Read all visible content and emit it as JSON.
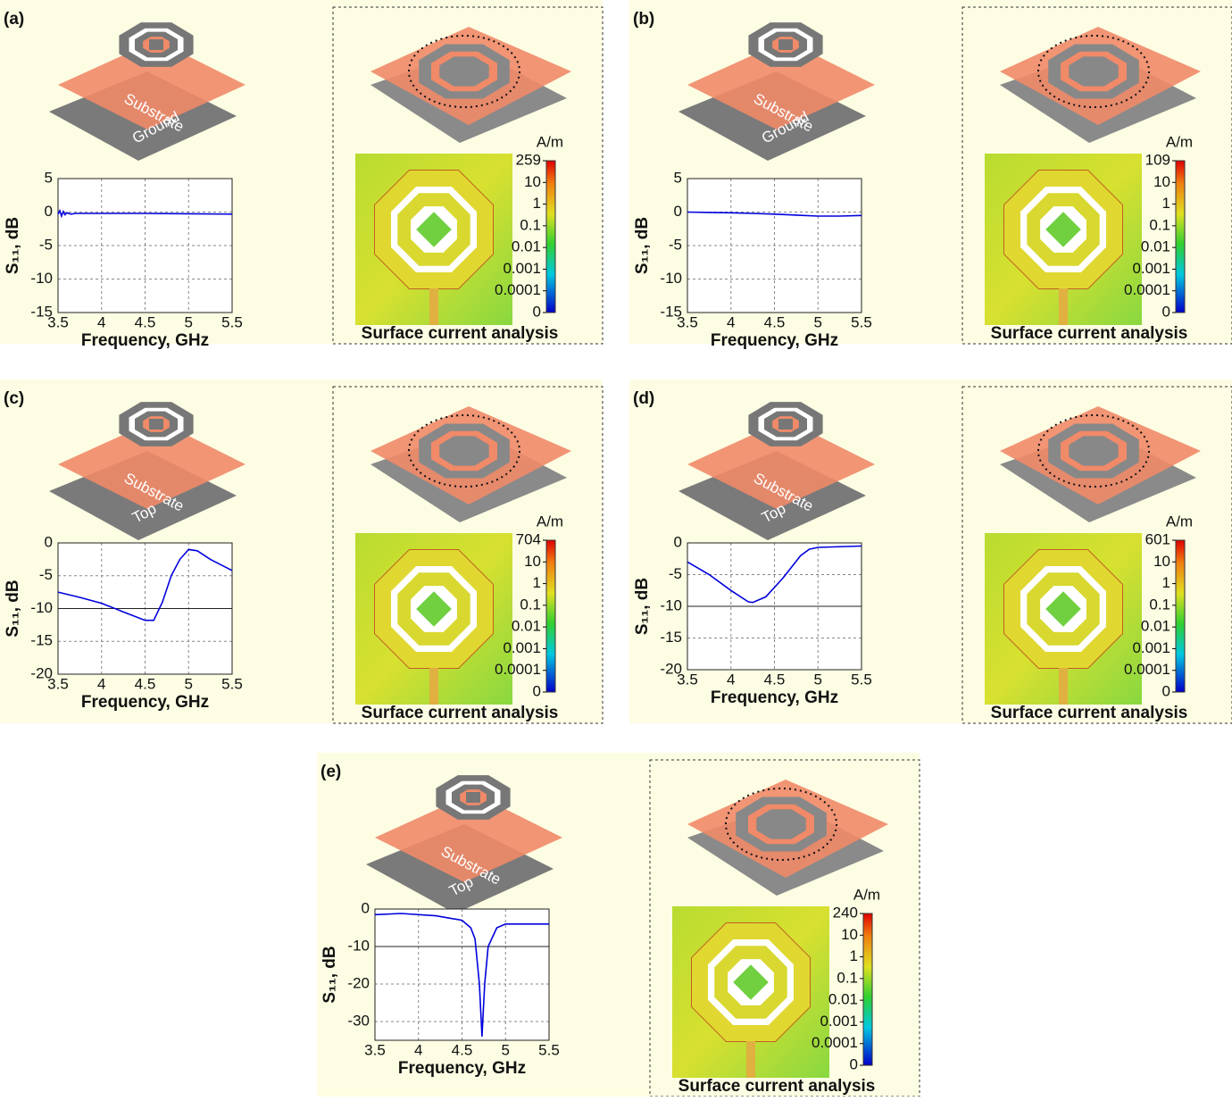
{
  "chart_data": [
    {
      "type": "line",
      "panel": "(a)",
      "layer_labels": [
        "Substrate",
        "Ground"
      ],
      "x": [
        3.5,
        3.52,
        3.54,
        3.56,
        3.58,
        3.6,
        3.65,
        3.7,
        4.0,
        4.5,
        5.0,
        5.5
      ],
      "series": [
        {
          "color": "#0000dd",
          "values": [
            -0.3,
            0.2,
            -0.6,
            0.1,
            -0.4,
            -0.1,
            -0.3,
            -0.2,
            -0.2,
            -0.2,
            -0.25,
            -0.3
          ]
        }
      ],
      "xlabel": "Frequency, GHz",
      "ylabel": "S₁₁, dB",
      "xlim": [
        3.5,
        5.5
      ],
      "ylim": [
        -15,
        5
      ],
      "xticks": [
        3.5,
        4,
        4.5,
        5,
        5.5
      ],
      "yticks": [
        -15,
        -10,
        -5,
        0,
        5
      ],
      "grid": true,
      "caption": "Surface current analysis",
      "colorbar": {
        "unit": "A/m",
        "ticks": [
          259,
          10,
          1,
          0.1,
          0.01,
          0.001,
          0.0001,
          0
        ]
      }
    },
    {
      "type": "line",
      "panel": "(b)",
      "layer_labels": [
        "Substrate",
        "Ground"
      ],
      "x": [
        3.5,
        3.75,
        4.0,
        4.25,
        4.5,
        4.75,
        5.0,
        5.25,
        5.5
      ],
      "series": [
        {
          "color": "#0000dd",
          "values": [
            0,
            -0.05,
            -0.1,
            -0.2,
            -0.3,
            -0.45,
            -0.6,
            -0.6,
            -0.5
          ]
        }
      ],
      "xlabel": "Frequency, GHz",
      "ylabel": "S₁₁, dB",
      "xlim": [
        3.5,
        5.5
      ],
      "ylim": [
        -15,
        5
      ],
      "xticks": [
        3.5,
        4,
        4.5,
        5,
        5.5
      ],
      "yticks": [
        -15,
        -10,
        -5,
        0,
        5
      ],
      "grid": true,
      "caption": "Surface current analysis",
      "colorbar": {
        "unit": "A/m",
        "ticks": [
          109,
          10,
          1,
          0.1,
          0.01,
          0.001,
          0.0001,
          0
        ]
      }
    },
    {
      "type": "line",
      "panel": "(c)",
      "layer_labels": [
        "Substrate",
        "Top"
      ],
      "x": [
        3.5,
        3.75,
        4.0,
        4.25,
        4.5,
        4.6,
        4.7,
        4.8,
        4.9,
        5.0,
        5.1,
        5.25,
        5.5
      ],
      "series": [
        {
          "color": "#0000dd",
          "values": [
            -7.5,
            -8.3,
            -9.2,
            -10.5,
            -11.8,
            -11.8,
            -9,
            -5,
            -2.5,
            -1,
            -1.2,
            -2.5,
            -4.2
          ]
        }
      ],
      "xlabel": "Frequency, GHz",
      "ylabel": "S₁₁, dB",
      "xlim": [
        3.5,
        5.5
      ],
      "ylim": [
        -20,
        0
      ],
      "xticks": [
        3.5,
        4,
        4.5,
        5,
        5.5
      ],
      "yticks": [
        -20,
        -15,
        -10,
        -5,
        0
      ],
      "grid": true,
      "reference_line": -10,
      "caption": "Surface current analysis",
      "colorbar": {
        "unit": "A/m",
        "ticks": [
          704,
          10,
          1,
          0.1,
          0.01,
          0.001,
          0.0001,
          0
        ]
      }
    },
    {
      "type": "line",
      "panel": "(d)",
      "layer_labels": [
        "Substrate",
        "Top"
      ],
      "x": [
        3.5,
        3.75,
        4.0,
        4.2,
        4.25,
        4.4,
        4.6,
        4.8,
        4.9,
        5.0,
        5.5
      ],
      "series": [
        {
          "color": "#0000dd",
          "values": [
            -3,
            -5,
            -7.5,
            -9.3,
            -9.4,
            -8.5,
            -5.5,
            -2,
            -1,
            -0.7,
            -0.5
          ]
        }
      ],
      "xlabel": "Frequency, GHz",
      "ylabel": "S₁₁, dB",
      "xlim": [
        3.5,
        5.5
      ],
      "ylim": [
        -20,
        0
      ],
      "xticks": [
        3.5,
        4,
        4.5,
        5,
        5.5
      ],
      "yticks": [
        -20,
        -15,
        -10,
        -5,
        0
      ],
      "grid": true,
      "reference_line": -10,
      "caption": "Surface current analysis",
      "colorbar": {
        "unit": "A/m",
        "ticks": [
          601,
          10,
          1,
          0.1,
          0.01,
          0.001,
          0.0001,
          0
        ]
      }
    },
    {
      "type": "line",
      "panel": "(e)",
      "layer_labels": [
        "Substrate",
        "Top"
      ],
      "x": [
        3.5,
        3.8,
        4.2,
        4.5,
        4.6,
        4.65,
        4.7,
        4.73,
        4.76,
        4.8,
        4.9,
        5.0,
        5.5
      ],
      "series": [
        {
          "color": "#0000dd",
          "values": [
            -1.5,
            -1.2,
            -1.8,
            -3,
            -5,
            -8,
            -20,
            -34,
            -20,
            -10,
            -5,
            -4,
            -4
          ]
        }
      ],
      "xlabel": "Frequency, GHz",
      "ylabel": "S₁₁, dB",
      "xlim": [
        3.5,
        5.5
      ],
      "ylim": [
        -35,
        0
      ],
      "xticks": [
        3.5,
        4,
        4.5,
        5,
        5.5
      ],
      "yticks": [
        -30,
        -20,
        -10,
        0
      ],
      "grid": true,
      "reference_line": -10,
      "caption": "Surface current analysis",
      "colorbar": {
        "unit": "A/m",
        "ticks": [
          240,
          10,
          1,
          0.1,
          0.01,
          0.001,
          0.0001,
          0
        ]
      }
    }
  ]
}
